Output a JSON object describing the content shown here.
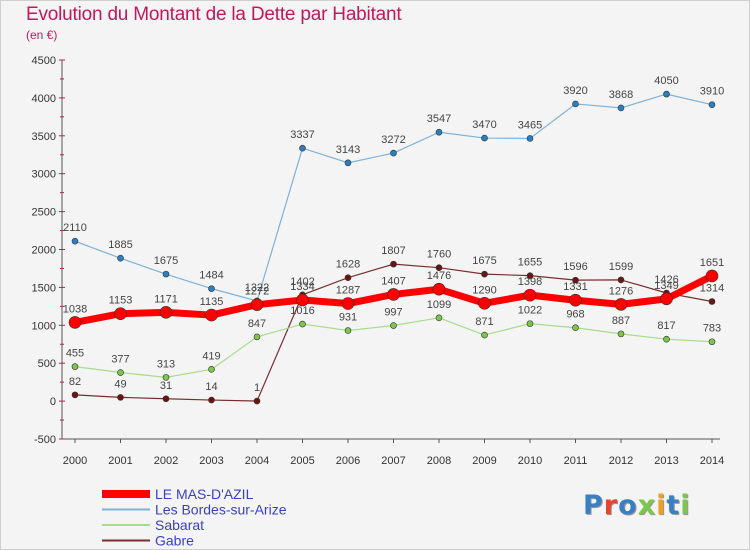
{
  "title": "Evolution du Montant de la Dette par Habitant",
  "unit": "(en €)",
  "logo": "Proxiti",
  "colors": {
    "title": "#c2185b",
    "legend_text": "#3a3fc4"
  },
  "chart_data": {
    "type": "line",
    "title": "Evolution du Montant de la Dette par Habitant",
    "subtitle": "(en €)",
    "categories": [
      "2000",
      "2001",
      "2002",
      "2003",
      "2004",
      "2005",
      "2006",
      "2007",
      "2008",
      "2009",
      "2010",
      "2011",
      "2012",
      "2013",
      "2014"
    ],
    "ylim": [
      -500,
      4500
    ],
    "yticks": [
      -500,
      0,
      500,
      1000,
      1500,
      2000,
      2500,
      3000,
      3500,
      4000,
      4500
    ],
    "grid": false,
    "legend_position": "bottom-left",
    "series": [
      {
        "name": "Gabre",
        "color": "#7a2e2e",
        "marker": "#6b1414",
        "width": 1.2,
        "radius": 3,
        "values": [
          82,
          49,
          31,
          14,
          1,
          1402,
          1628,
          1807,
          1760,
          1675,
          1655,
          1596,
          1599,
          1426,
          1314
        ]
      },
      {
        "name": "Sabarat",
        "color": "#a8dc8c",
        "marker": "#7cc64c",
        "width": 1.2,
        "radius": 3,
        "values": [
          455,
          377,
          313,
          419,
          847,
          1016,
          931,
          997,
          1099,
          871,
          1022,
          968,
          887,
          817,
          783
        ]
      },
      {
        "name": "Les Bordes-sur-Arize",
        "color": "#7fb1d9",
        "marker": "#2b7fc0",
        "width": 1.2,
        "radius": 3,
        "values": [
          2110,
          1885,
          1675,
          1484,
          1322,
          3337,
          3143,
          3272,
          3547,
          3470,
          3465,
          3920,
          3868,
          4050,
          3910
        ]
      },
      {
        "name": "LE MAS-D'AZIL",
        "color": "#ff0000",
        "marker": "#ff0000",
        "width": 7,
        "radius": 6,
        "values": [
          1038,
          1153,
          1171,
          1135,
          1272,
          1334,
          1287,
          1407,
          1476,
          1290,
          1398,
          1331,
          1276,
          1349,
          1651
        ]
      }
    ]
  }
}
